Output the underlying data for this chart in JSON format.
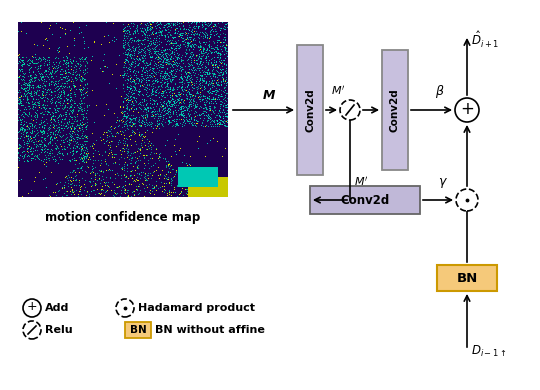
{
  "bg_color": "#ffffff",
  "conv2d_color": "#c8c0de",
  "conv2d_border": "#888888",
  "conv3d_color": "#c0b8d8",
  "conv3d_border": "#666666",
  "bn_color": "#f5c97a",
  "bn_border": "#cc9900",
  "caption": "motion confidence map",
  "add_label": "Add",
  "hadamard_label": "Hadamard product",
  "relu_label": "Relu",
  "bn_label": "BN without affine"
}
